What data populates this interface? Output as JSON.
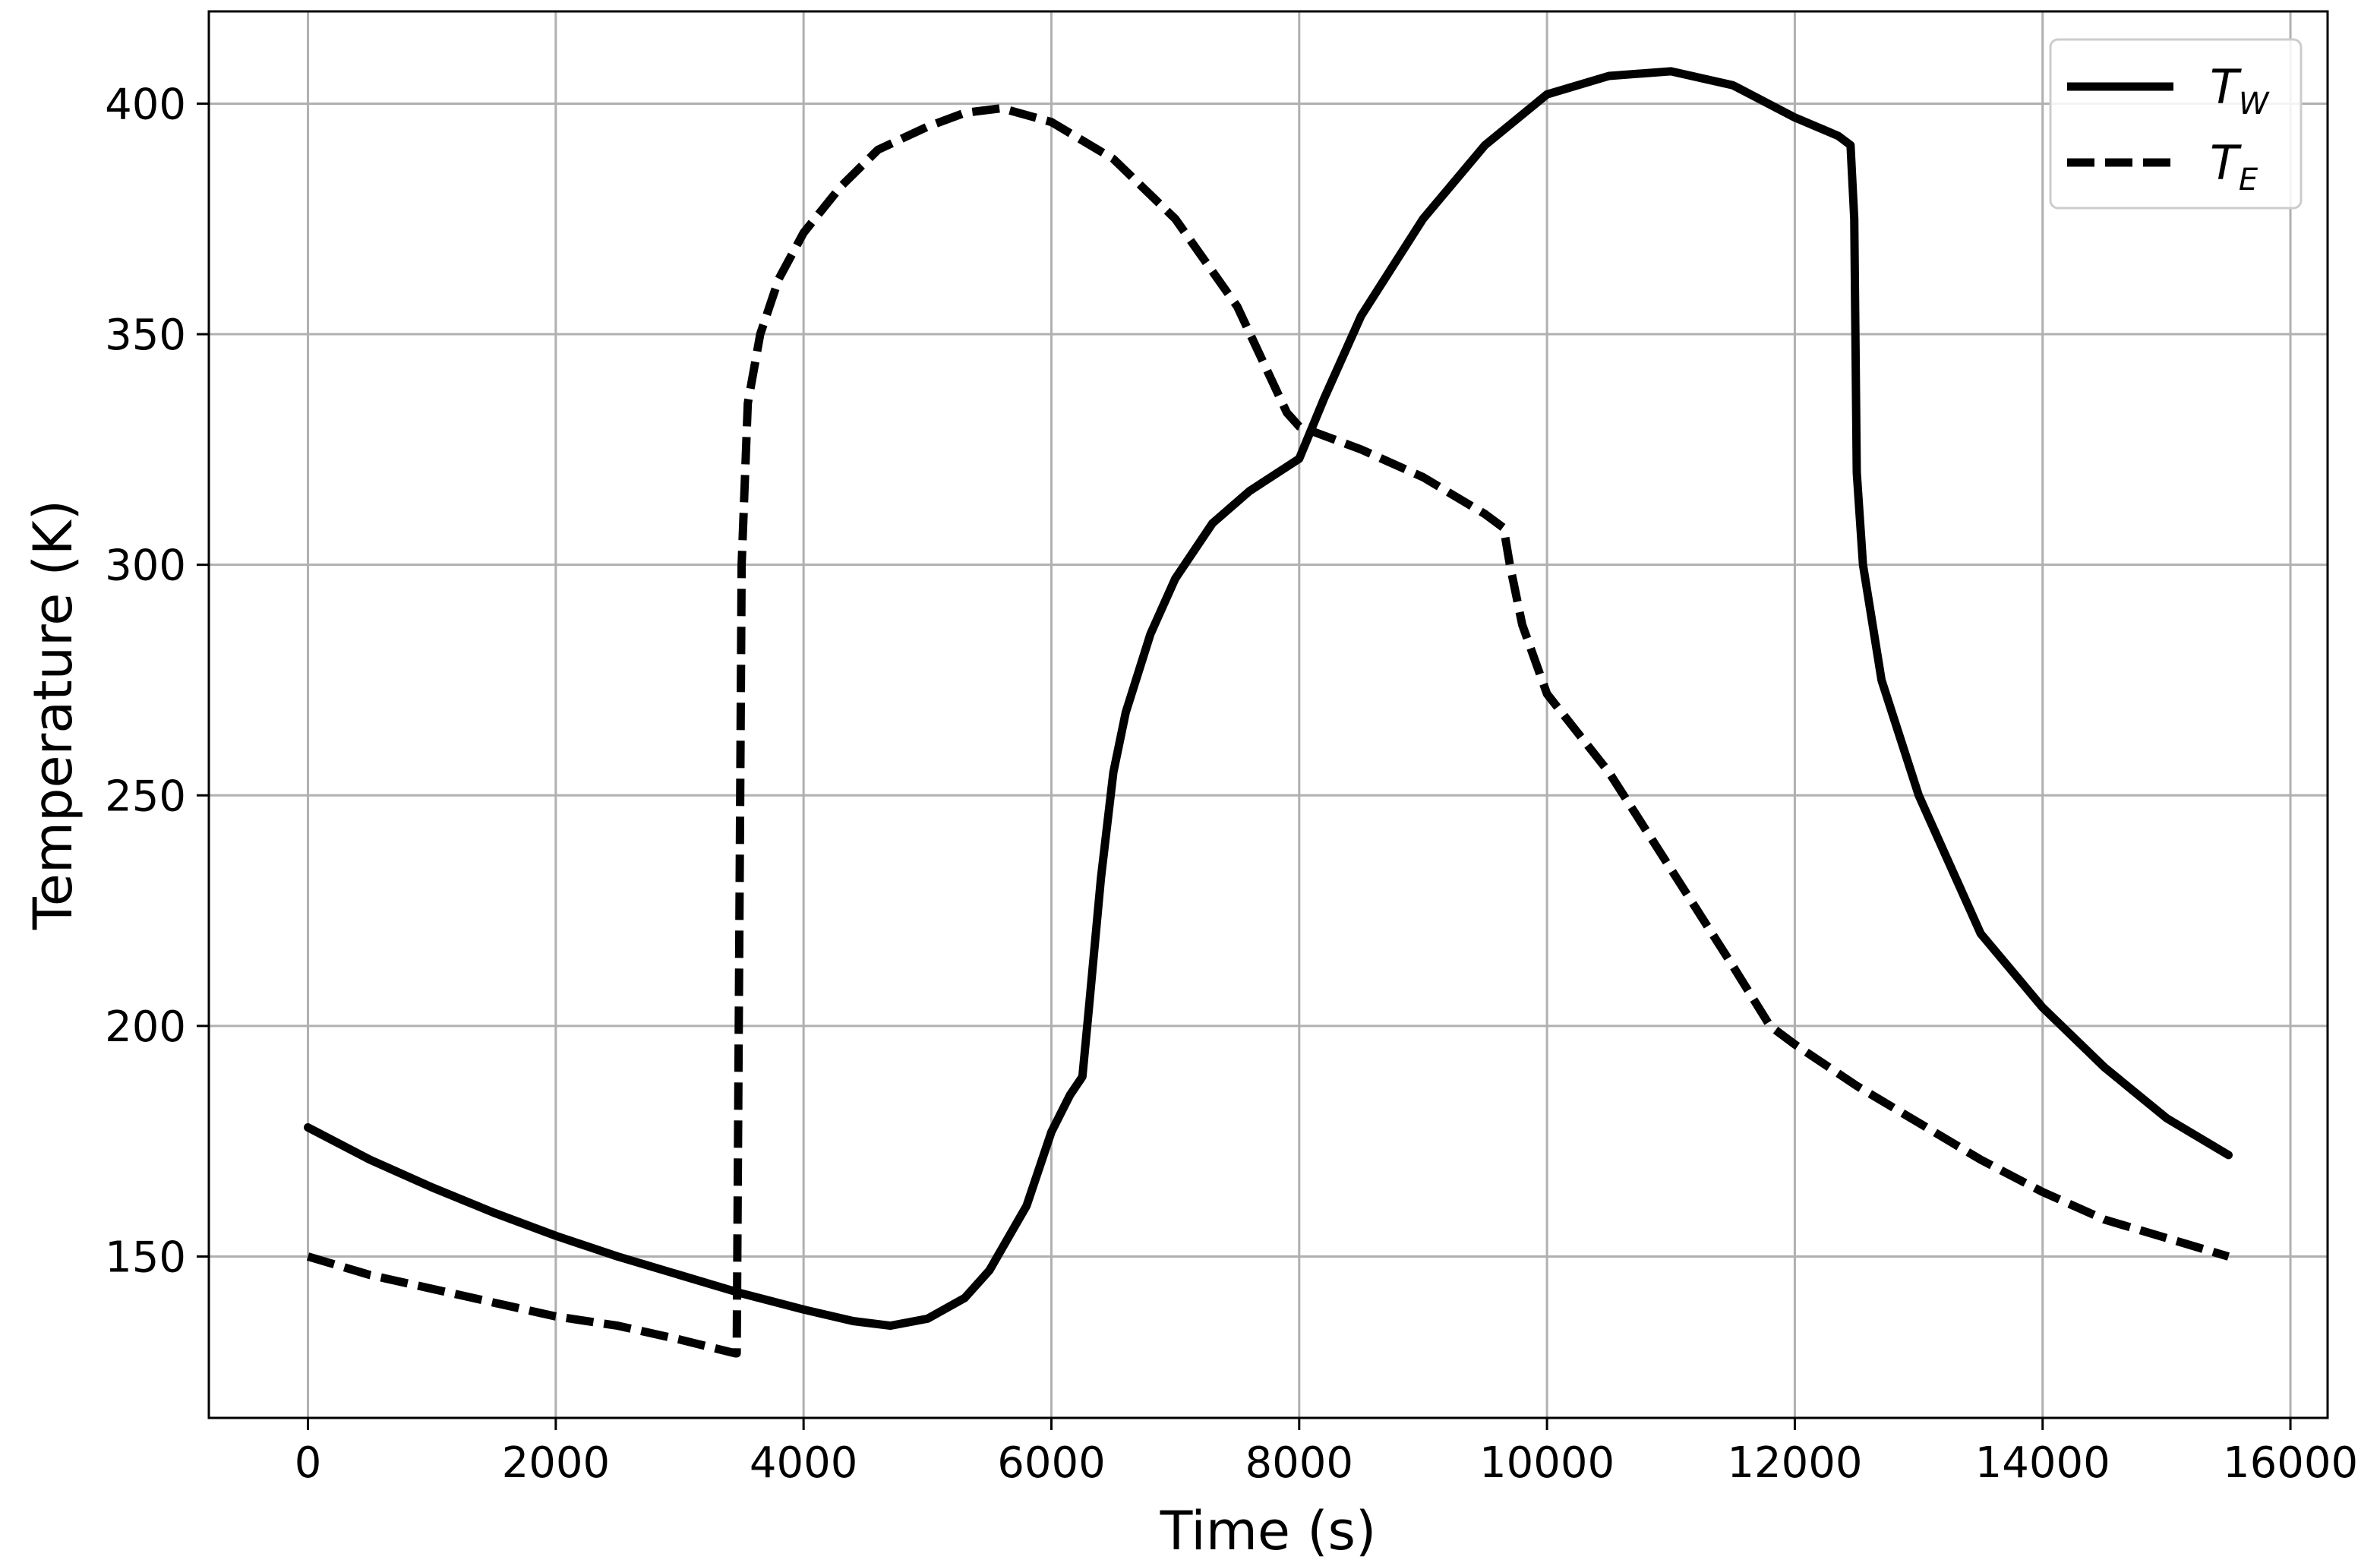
{
  "chart_data": {
    "type": "line",
    "xlabel": "Time (s)",
    "ylabel": "Temperature (K)",
    "xlim": [
      -800,
      16300
    ],
    "ylim": [
      115,
      420
    ],
    "xticks": [
      0,
      2000,
      4000,
      6000,
      8000,
      10000,
      12000,
      14000,
      16000
    ],
    "yticks": [
      150,
      200,
      250,
      300,
      350,
      400
    ],
    "xtick_labels": [
      "0",
      "2000",
      "4000",
      "6000",
      "8000",
      "10000",
      "12000",
      "14000",
      "16000"
    ],
    "ytick_labels": [
      "150",
      "200",
      "250",
      "300",
      "350",
      "400"
    ],
    "grid": true,
    "legend": {
      "position": "top-right",
      "entries": [
        {
          "base": "T",
          "sub": "W",
          "style": "solid"
        },
        {
          "base": "T",
          "sub": "E",
          "style": "dashed"
        }
      ]
    },
    "series": [
      {
        "name": "T_W",
        "style": "solid",
        "color": "#000000",
        "x": [
          0,
          500,
          1000,
          1500,
          2000,
          2500,
          3000,
          3500,
          4000,
          4400,
          4700,
          5000,
          5300,
          5500,
          5800,
          6000,
          6150,
          6250,
          6300,
          6400,
          6500,
          6600,
          6800,
          7000,
          7300,
          7600,
          8000,
          8200,
          8500,
          9000,
          9500,
          10000,
          10500,
          11000,
          11500,
          12000,
          12350,
          12450,
          12480,
          12500,
          12550,
          12700,
          13000,
          13500,
          14000,
          14500,
          15000,
          15500
        ],
        "y": [
          178,
          171,
          165,
          159.5,
          154.5,
          150,
          146,
          142,
          138.5,
          136,
          135,
          136.5,
          141,
          147,
          161,
          177,
          185,
          189,
          203,
          232,
          255,
          268,
          285,
          297,
          309,
          316,
          323,
          336,
          354,
          375,
          391,
          402,
          406,
          407,
          404,
          397,
          393,
          391,
          375,
          320,
          300,
          275,
          250,
          220,
          204,
          191,
          180,
          172
        ]
      },
      {
        "name": "T_E",
        "style": "dashed",
        "color": "#000000",
        "x": [
          0,
          500,
          1000,
          1500,
          2000,
          2500,
          3000,
          3450,
          3460,
          3500,
          3550,
          3650,
          3800,
          4000,
          4300,
          4600,
          5000,
          5300,
          5600,
          6000,
          6500,
          7000,
          7500,
          7900,
          8000,
          8500,
          9000,
          9500,
          9650,
          9700,
          9800,
          10000,
          10500,
          11000,
          11500,
          11800,
          12000,
          12500,
          13000,
          13500,
          14000,
          14500,
          15000,
          15500
        ],
        "y": [
          150,
          146,
          143,
          140,
          137,
          135,
          132,
          129,
          129,
          300,
          335,
          350,
          362,
          372,
          382,
          390,
          395,
          398,
          399,
          396,
          388,
          375,
          356,
          333,
          330,
          325,
          319,
          311,
          308,
          300,
          287,
          272,
          255,
          234,
          213,
          200,
          196,
          187,
          179,
          171,
          164,
          158,
          154,
          150
        ]
      }
    ]
  }
}
